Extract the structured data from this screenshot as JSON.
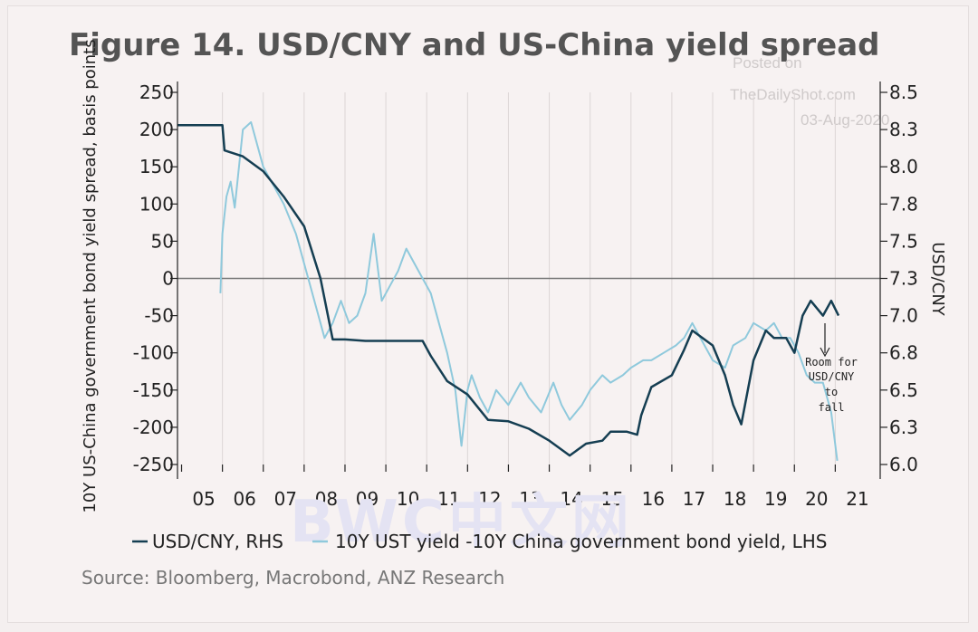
{
  "chart_data": {
    "type": "line",
    "title": "Figure 14. USD/CNY and US-China yield spread",
    "ylabel_left": "10Y US-China government bond yield spread, basis points",
    "ylabel_right": "USD/CNY",
    "ylim_left": [
      -250,
      250
    ],
    "yticks_left": [
      "250",
      "200",
      "150",
      "100",
      "50",
      "0",
      "-50",
      "-100",
      "-150",
      "-200",
      "-250"
    ],
    "ylim_right": [
      6.0,
      8.5
    ],
    "yticks_right": [
      "8.5",
      "8.3",
      "8.0",
      "7.8",
      "7.5",
      "7.3",
      "7.0",
      "6.8",
      "6.5",
      "6.3",
      "6.0"
    ],
    "xlim": [
      2004.4,
      2021.6
    ],
    "xticks": [
      "05",
      "06",
      "07",
      "08",
      "09",
      "10",
      "11",
      "12",
      "13",
      "14",
      "15",
      "16",
      "17",
      "18",
      "19",
      "20",
      "21"
    ],
    "grid": "vertical",
    "series": [
      {
        "name": "USD/CNY, RHS",
        "axis": "right",
        "color": "#153e52",
        "x": [
          2004.4,
          2005.5,
          2005.55,
          2006.0,
          2006.5,
          2007.0,
          2007.5,
          2007.9,
          2008.2,
          2008.5,
          2009.0,
          2009.5,
          2010.0,
          2010.4,
          2010.6,
          2011.0,
          2011.5,
          2012.0,
          2012.5,
          2013.0,
          2013.5,
          2014.0,
          2014.4,
          2014.8,
          2015.0,
          2015.4,
          2015.65,
          2015.75,
          2016.0,
          2016.5,
          2016.8,
          2017.0,
          2017.5,
          2017.8,
          2018.0,
          2018.2,
          2018.5,
          2018.8,
          2019.0,
          2019.3,
          2019.5,
          2019.7,
          2019.9,
          2020.2,
          2020.4,
          2020.58
        ],
        "y": [
          8.28,
          8.28,
          8.11,
          8.07,
          7.97,
          7.8,
          7.6,
          7.25,
          6.84,
          6.84,
          6.83,
          6.83,
          6.83,
          6.83,
          6.73,
          6.56,
          6.47,
          6.3,
          6.29,
          6.24,
          6.16,
          6.06,
          6.14,
          6.16,
          6.22,
          6.22,
          6.2,
          6.33,
          6.52,
          6.6,
          6.77,
          6.9,
          6.8,
          6.6,
          6.4,
          6.27,
          6.7,
          6.9,
          6.85,
          6.85,
          6.75,
          7.0,
          7.1,
          7.0,
          7.1,
          7.0
        ]
      },
      {
        "name": "10Y UST yield -10Y China government bond yield, LHS",
        "axis": "left",
        "color": "#8fc9dc",
        "x": [
          2005.45,
          2005.5,
          2005.6,
          2005.7,
          2005.8,
          2006.0,
          2006.2,
          2006.5,
          2006.8,
          2007.0,
          2007.3,
          2007.6,
          2007.8,
          2008.0,
          2008.2,
          2008.4,
          2008.6,
          2008.8,
          2009.0,
          2009.2,
          2009.4,
          2009.6,
          2009.8,
          2010.0,
          2010.2,
          2010.4,
          2010.6,
          2010.8,
          2011.0,
          2011.2,
          2011.35,
          2011.5,
          2011.6,
          2011.8,
          2012.0,
          2012.2,
          2012.5,
          2012.8,
          2013.0,
          2013.3,
          2013.6,
          2013.8,
          2014.0,
          2014.3,
          2014.5,
          2014.8,
          2015.0,
          2015.3,
          2015.5,
          2015.8,
          2016.0,
          2016.3,
          2016.6,
          2016.8,
          2017.0,
          2017.3,
          2017.5,
          2017.8,
          2018.0,
          2018.3,
          2018.5,
          2018.8,
          2019.0,
          2019.2,
          2019.4,
          2019.6,
          2019.8,
          2020.0,
          2020.2,
          2020.4,
          2020.55
        ],
        "y": [
          -20,
          60,
          110,
          130,
          95,
          200,
          210,
          150,
          120,
          100,
          60,
          0,
          -40,
          -80,
          -60,
          -30,
          -60,
          -50,
          -20,
          60,
          -30,
          -10,
          10,
          40,
          20,
          0,
          -20,
          -60,
          -100,
          -150,
          -225,
          -150,
          -130,
          -160,
          -180,
          -150,
          -170,
          -140,
          -160,
          -180,
          -140,
          -170,
          -190,
          -170,
          -150,
          -130,
          -140,
          -130,
          -120,
          -110,
          -110,
          -100,
          -90,
          -80,
          -60,
          -90,
          -110,
          -120,
          -90,
          -80,
          -60,
          -70,
          -60,
          -80,
          -80,
          -100,
          -130,
          -140,
          -140,
          -180,
          -245
        ]
      }
    ],
    "annotation": {
      "lines": [
        "Room for",
        "USD/CNY",
        "to",
        "fall"
      ]
    }
  },
  "legend": [
    {
      "label": "USD/CNY, RHS",
      "color": "#153e52"
    },
    {
      "label": "10Y UST yield -10Y China government bond yield, LHS",
      "color": "#8fc9dc"
    }
  ],
  "source": "Source: Bloomberg, Macrobond, ANZ Research",
  "watermark": {
    "lines": [
      "Posted on",
      "TheDailyShot.com",
      "03-Aug-2020"
    ],
    "brand": "BWC中文网"
  }
}
